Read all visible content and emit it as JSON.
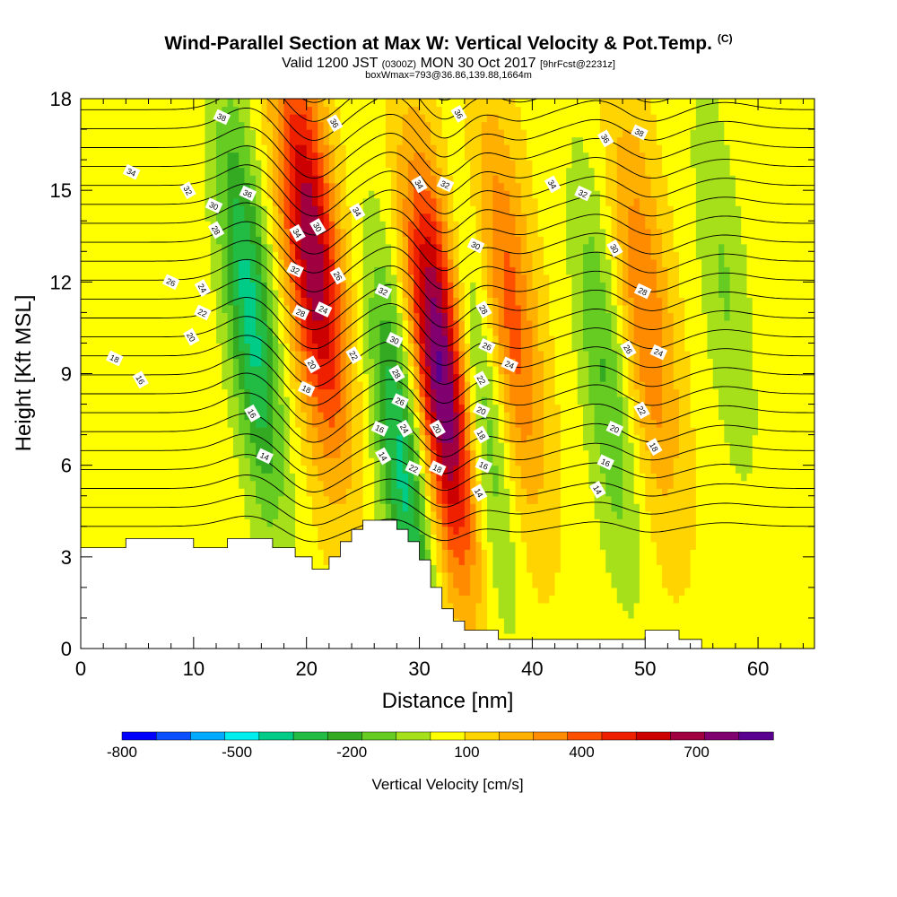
{
  "header": {
    "title": "Wind-Parallel Section at Max W: Vertical Velocity & Pot.Temp.",
    "title_mark": "(C)",
    "valid_prefix": "Valid 1200 JST",
    "valid_utc": "(0300Z)",
    "valid_date": "MON 30 Oct 2017",
    "forecast": "[9hrFcst@2231z]",
    "boxinfo": "boxWmax=793@36.86,139.88,1664m"
  },
  "chart_data": {
    "type": "heatmap",
    "xlabel": "Distance [nm]",
    "ylabel": "Height [Kft MSL]",
    "xlim": [
      0,
      65
    ],
    "ylim": [
      0,
      18
    ],
    "xticks": [
      0,
      10,
      20,
      30,
      40,
      50,
      60
    ],
    "yticks": [
      0,
      3,
      6,
      9,
      12,
      15,
      18
    ],
    "colorbar": {
      "label": "Vertical Velocity [cm/s]",
      "tick_labels": [
        "-800",
        "-500",
        "-200",
        "100",
        "400",
        "700"
      ],
      "tick_values": [
        -800,
        -500,
        -200,
        100,
        400,
        700
      ],
      "range": [
        -800,
        900
      ],
      "colors": [
        "#0000ff",
        "#0a50ff",
        "#00aaff",
        "#00eeee",
        "#00cc88",
        "#22bb44",
        "#33aa22",
        "#66cc22",
        "#a6e01a",
        "#ffff00",
        "#ffd400",
        "#ffb000",
        "#ff8c00",
        "#ff5000",
        "#ee2000",
        "#cc0000",
        "#a00040",
        "#800070",
        "#5a0090"
      ]
    },
    "terrain": [
      [
        0,
        3.3
      ],
      [
        4,
        3.3
      ],
      [
        4,
        3.6
      ],
      [
        10,
        3.6
      ],
      [
        10,
        3.3
      ],
      [
        13,
        3.3
      ],
      [
        13,
        3.6
      ],
      [
        17,
        3.6
      ],
      [
        17,
        3.3
      ],
      [
        19,
        3.3
      ],
      [
        19,
        3.0
      ],
      [
        20.5,
        3.0
      ],
      [
        20.5,
        2.6
      ],
      [
        22,
        2.6
      ],
      [
        22,
        3.0
      ],
      [
        23,
        3.0
      ],
      [
        23,
        3.5
      ],
      [
        24,
        3.5
      ],
      [
        24,
        3.9
      ],
      [
        25,
        3.9
      ],
      [
        25,
        4.2
      ],
      [
        28,
        4.2
      ],
      [
        28,
        3.9
      ],
      [
        29,
        3.9
      ],
      [
        29,
        3.5
      ],
      [
        30,
        3.5
      ],
      [
        30,
        2.9
      ],
      [
        31,
        2.9
      ],
      [
        31,
        2.0
      ],
      [
        32,
        2.0
      ],
      [
        32,
        1.3
      ],
      [
        33,
        1.3
      ],
      [
        33,
        0.9
      ],
      [
        34,
        0.9
      ],
      [
        34,
        0.6
      ],
      [
        37,
        0.6
      ],
      [
        37,
        0.3
      ],
      [
        50,
        0.3
      ],
      [
        50,
        0.6
      ],
      [
        53,
        0.6
      ],
      [
        53,
        0.3
      ],
      [
        55,
        0.3
      ],
      [
        55,
        0
      ],
      [
        65,
        0
      ]
    ],
    "features": [
      {
        "kind": "updraft",
        "x": 20.5,
        "z": 13,
        "w": 650
      },
      {
        "kind": "downdraft",
        "x": 15,
        "z": 11,
        "w": -450
      },
      {
        "kind": "updraft",
        "x": 32,
        "z": 9,
        "w": 793
      },
      {
        "kind": "downdraft",
        "x": 28.5,
        "z": 6,
        "w": -450
      },
      {
        "kind": "downdraft",
        "x": 35.5,
        "z": 8,
        "w": -300
      },
      {
        "kind": "updraft",
        "x": 38,
        "z": 11,
        "w": 350
      },
      {
        "kind": "downdraft",
        "x": 46.5,
        "z": 9,
        "w": -250
      },
      {
        "kind": "updraft",
        "x": 50,
        "z": 11,
        "w": 300
      },
      {
        "kind": "downdraft",
        "x": 57,
        "z": 12,
        "w": -150
      }
    ],
    "theta_labels": [
      {
        "text": "38",
        "x": 12.5,
        "z": 17.4
      },
      {
        "text": "36",
        "x": 22.5,
        "z": 17.2
      },
      {
        "text": "34",
        "x": 4.5,
        "z": 15.6
      },
      {
        "text": "32",
        "x": 9.5,
        "z": 15.0
      },
      {
        "text": "30",
        "x": 11.8,
        "z": 14.5
      },
      {
        "text": "28",
        "x": 12.0,
        "z": 13.7
      },
      {
        "text": "26",
        "x": 8.0,
        "z": 12.0
      },
      {
        "text": "24",
        "x": 10.8,
        "z": 11.8
      },
      {
        "text": "22",
        "x": 10.8,
        "z": 11.0
      },
      {
        "text": "20",
        "x": 9.8,
        "z": 10.2
      },
      {
        "text": "18",
        "x": 3.0,
        "z": 9.5
      },
      {
        "text": "16",
        "x": 5.3,
        "z": 8.8
      },
      {
        "text": "36",
        "x": 14.8,
        "z": 14.9
      },
      {
        "text": "34",
        "x": 19.2,
        "z": 13.6
      },
      {
        "text": "32",
        "x": 19.0,
        "z": 12.4
      },
      {
        "text": "30",
        "x": 21.0,
        "z": 13.8
      },
      {
        "text": "28",
        "x": 19.5,
        "z": 11.0
      },
      {
        "text": "26",
        "x": 22.8,
        "z": 12.2
      },
      {
        "text": "24",
        "x": 21.5,
        "z": 11.1
      },
      {
        "text": "20",
        "x": 20.5,
        "z": 9.3
      },
      {
        "text": "18",
        "x": 20.0,
        "z": 8.5
      },
      {
        "text": "16",
        "x": 15.2,
        "z": 7.7
      },
      {
        "text": "14",
        "x": 16.3,
        "z": 6.3
      },
      {
        "text": "34",
        "x": 24.5,
        "z": 14.3
      },
      {
        "text": "32",
        "x": 26.8,
        "z": 11.7
      },
      {
        "text": "22",
        "x": 24.2,
        "z": 9.6
      },
      {
        "text": "30",
        "x": 27.8,
        "z": 10.1
      },
      {
        "text": "28",
        "x": 28.0,
        "z": 9.0
      },
      {
        "text": "26",
        "x": 28.3,
        "z": 8.1
      },
      {
        "text": "24",
        "x": 28.7,
        "z": 7.2
      },
      {
        "text": "16",
        "x": 26.5,
        "z": 7.2
      },
      {
        "text": "14",
        "x": 26.8,
        "z": 6.3
      },
      {
        "text": "22",
        "x": 29.5,
        "z": 5.9
      },
      {
        "text": "34",
        "x": 30.0,
        "z": 15.2
      },
      {
        "text": "32",
        "x": 32.3,
        "z": 15.2
      },
      {
        "text": "20",
        "x": 31.6,
        "z": 7.2
      },
      {
        "text": "18",
        "x": 31.6,
        "z": 5.9
      },
      {
        "text": "36",
        "x": 33.5,
        "z": 17.5
      },
      {
        "text": "30",
        "x": 35.0,
        "z": 13.2
      },
      {
        "text": "28",
        "x": 35.7,
        "z": 11.1
      },
      {
        "text": "26",
        "x": 36.0,
        "z": 9.9
      },
      {
        "text": "22",
        "x": 35.5,
        "z": 8.8
      },
      {
        "text": "20",
        "x": 35.5,
        "z": 7.8
      },
      {
        "text": "18",
        "x": 35.5,
        "z": 7.0
      },
      {
        "text": "16",
        "x": 35.7,
        "z": 6.0
      },
      {
        "text": "14",
        "x": 35.3,
        "z": 5.1
      },
      {
        "text": "24",
        "x": 38.0,
        "z": 9.3
      },
      {
        "text": "34",
        "x": 41.8,
        "z": 15.2
      },
      {
        "text": "32",
        "x": 44.5,
        "z": 14.9
      },
      {
        "text": "36",
        "x": 46.5,
        "z": 16.7
      },
      {
        "text": "38",
        "x": 49.5,
        "z": 16.9
      },
      {
        "text": "30",
        "x": 47.3,
        "z": 13.1
      },
      {
        "text": "28",
        "x": 49.8,
        "z": 11.7
      },
      {
        "text": "26",
        "x": 48.5,
        "z": 9.8
      },
      {
        "text": "24",
        "x": 51.2,
        "z": 9.7
      },
      {
        "text": "22",
        "x": 49.7,
        "z": 7.8
      },
      {
        "text": "20",
        "x": 47.3,
        "z": 7.2
      },
      {
        "text": "18",
        "x": 50.8,
        "z": 6.6
      },
      {
        "text": "16",
        "x": 46.5,
        "z": 6.1
      },
      {
        "text": "14",
        "x": 45.8,
        "z": 5.2
      }
    ]
  }
}
